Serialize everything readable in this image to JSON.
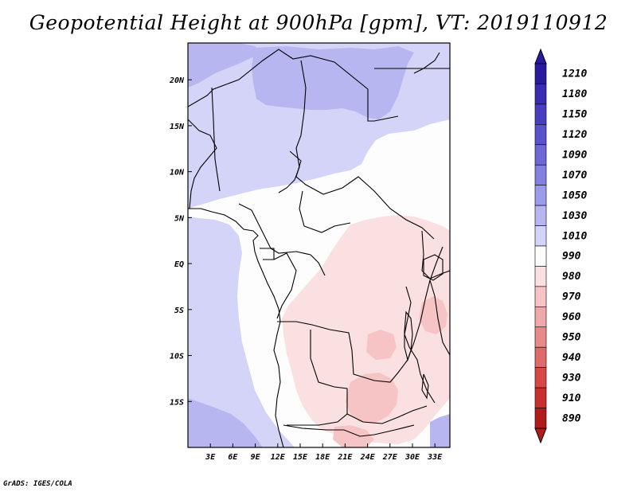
{
  "title": "Geopotential Height at 900hPa [gpm], VT: 2019110912",
  "credit": "GrADS: IGES/COLA",
  "map": {
    "region": "Central Africa",
    "lon_range_deg": [
      0,
      35
    ],
    "lat_range_deg": [
      -20,
      24
    ]
  },
  "axes": {
    "x_ticks": [
      {
        "label": "3E",
        "value": 3
      },
      {
        "label": "6E",
        "value": 6
      },
      {
        "label": "9E",
        "value": 9
      },
      {
        "label": "12E",
        "value": 12
      },
      {
        "label": "15E",
        "value": 15
      },
      {
        "label": "18E",
        "value": 18
      },
      {
        "label": "21E",
        "value": 21
      },
      {
        "label": "24E",
        "value": 24
      },
      {
        "label": "27E",
        "value": 27
      },
      {
        "label": "30E",
        "value": 30
      },
      {
        "label": "33E",
        "value": 33
      }
    ],
    "y_ticks": [
      {
        "label": "20N",
        "value": 20
      },
      {
        "label": "15N",
        "value": 15
      },
      {
        "label": "10N",
        "value": 10
      },
      {
        "label": "5N",
        "value": 5
      },
      {
        "label": "EQ",
        "value": 0
      },
      {
        "label": "5S",
        "value": -5
      },
      {
        "label": "10S",
        "value": -10
      },
      {
        "label": "15S",
        "value": -15
      }
    ]
  },
  "colorbar": {
    "levels": [
      {
        "label": "1210",
        "color": "#2a1a9e"
      },
      {
        "label": "1180",
        "color": "#3a2cb0"
      },
      {
        "label": "1150",
        "color": "#4a3ec0"
      },
      {
        "label": "1120",
        "color": "#5a52cc"
      },
      {
        "label": "1090",
        "color": "#6e68d6"
      },
      {
        "label": "1070",
        "color": "#8480e0"
      },
      {
        "label": "1050",
        "color": "#9c9aea"
      },
      {
        "label": "1030",
        "color": "#b8b6f0"
      },
      {
        "label": "1010",
        "color": "#d4d4f8"
      },
      {
        "label": "990",
        "color": "#fdfdfd"
      },
      {
        "label": "980",
        "color": "#fae0e0"
      },
      {
        "label": "970",
        "color": "#f6c4c4"
      },
      {
        "label": "960",
        "color": "#f0a8a8"
      },
      {
        "label": "950",
        "color": "#e88a8a"
      },
      {
        "label": "940",
        "color": "#e06a6a"
      },
      {
        "label": "930",
        "color": "#d84848"
      },
      {
        "label": "910",
        "color": "#c83030"
      },
      {
        "label": "890",
        "color": "#b01c1c"
      }
    ]
  }
}
